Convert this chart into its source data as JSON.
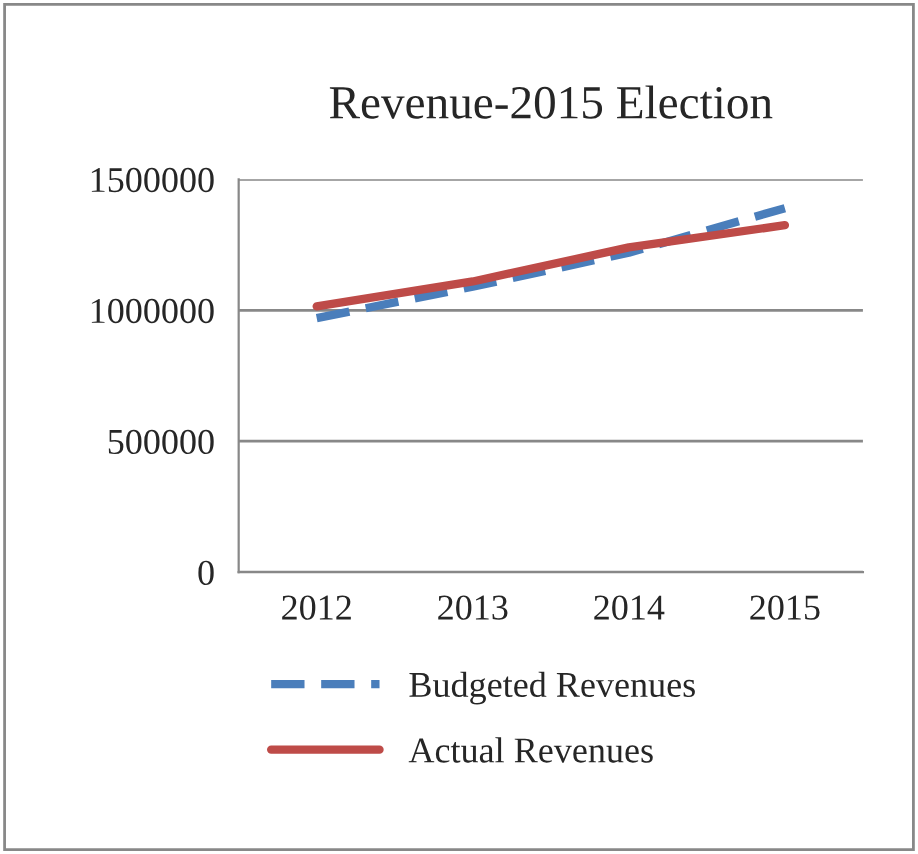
{
  "chart_data": {
    "type": "line",
    "title": "Revenue-2015 Election",
    "categories": [
      "2012",
      "2013",
      "2014",
      "2015"
    ],
    "series": [
      {
        "name": "Budgeted Revenues",
        "color": "#4a7ebb",
        "values": [
          970000,
          1090000,
          1220000,
          1390000
        ],
        "line_style": "dashed"
      },
      {
        "name": "Actual Revenues",
        "color": "#be4b48",
        "values": [
          1015000,
          1110000,
          1240000,
          1325000
        ],
        "line_style": "solid"
      }
    ],
    "ylim": [
      0,
      1500000
    ],
    "yticks": [
      0,
      500000,
      1000000,
      1500000
    ],
    "grid": "y",
    "legend": "bottom",
    "marker": "none"
  }
}
